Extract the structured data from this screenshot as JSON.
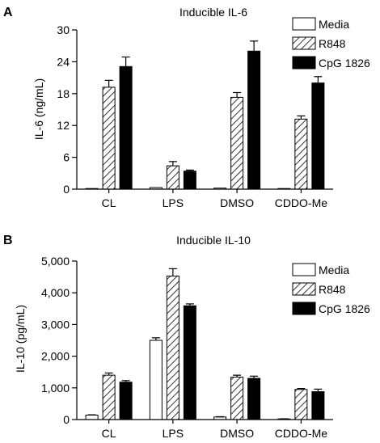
{
  "panel_letters": [
    "A",
    "B"
  ],
  "colors": {
    "media": "#ffffff",
    "r848": "hatched",
    "cpg": "#000000"
  },
  "chart_data": [
    {
      "type": "bar",
      "title": "Inducible IL-6",
      "xlabel": "",
      "ylabel": "IL-6 (ng/mL)",
      "categories": [
        "CL",
        "LPS",
        "DMSO",
        "CDDO-Me"
      ],
      "ylim": [
        0,
        30
      ],
      "yticks": [
        "0",
        "6",
        "12",
        "18",
        "24",
        "30"
      ],
      "ytick_values": [
        0,
        6,
        12,
        18,
        24,
        30
      ],
      "legend": "top-right",
      "series": [
        {
          "name": "Media",
          "values": [
            0.1,
            0.3,
            0.2,
            0.1
          ],
          "errors": [
            0,
            0,
            0,
            0
          ]
        },
        {
          "name": "R848",
          "values": [
            19.2,
            4.4,
            17.3,
            13.2
          ],
          "errors": [
            1.3,
            0.8,
            0.9,
            0.6
          ]
        },
        {
          "name": "CpG 1826",
          "values": [
            23.1,
            3.4,
            26.0,
            20.0
          ],
          "errors": [
            1.8,
            0.2,
            1.9,
            1.2
          ]
        }
      ]
    },
    {
      "type": "bar",
      "title": "Inducible IL-10",
      "xlabel": "",
      "ylabel": "IL-10 (pg/mL)",
      "categories": [
        "CL",
        "LPS",
        "DMSO",
        "CDDO-Me"
      ],
      "ylim": [
        0,
        5000
      ],
      "yticks": [
        "0",
        "1,000",
        "2,000",
        "3,000",
        "4,000",
        "5,000"
      ],
      "ytick_values": [
        0,
        1000,
        2000,
        3000,
        4000,
        5000
      ],
      "legend": "top-right",
      "series": [
        {
          "name": "Media",
          "values": [
            140,
            2500,
            80,
            20
          ],
          "errors": [
            10,
            80,
            10,
            5
          ]
        },
        {
          "name": "R848",
          "values": [
            1400,
            4530,
            1340,
            950
          ],
          "errors": [
            70,
            230,
            60,
            30
          ]
        },
        {
          "name": "CpG 1826",
          "values": [
            1180,
            3590,
            1300,
            880
          ],
          "errors": [
            50,
            60,
            70,
            80
          ]
        }
      ]
    }
  ]
}
